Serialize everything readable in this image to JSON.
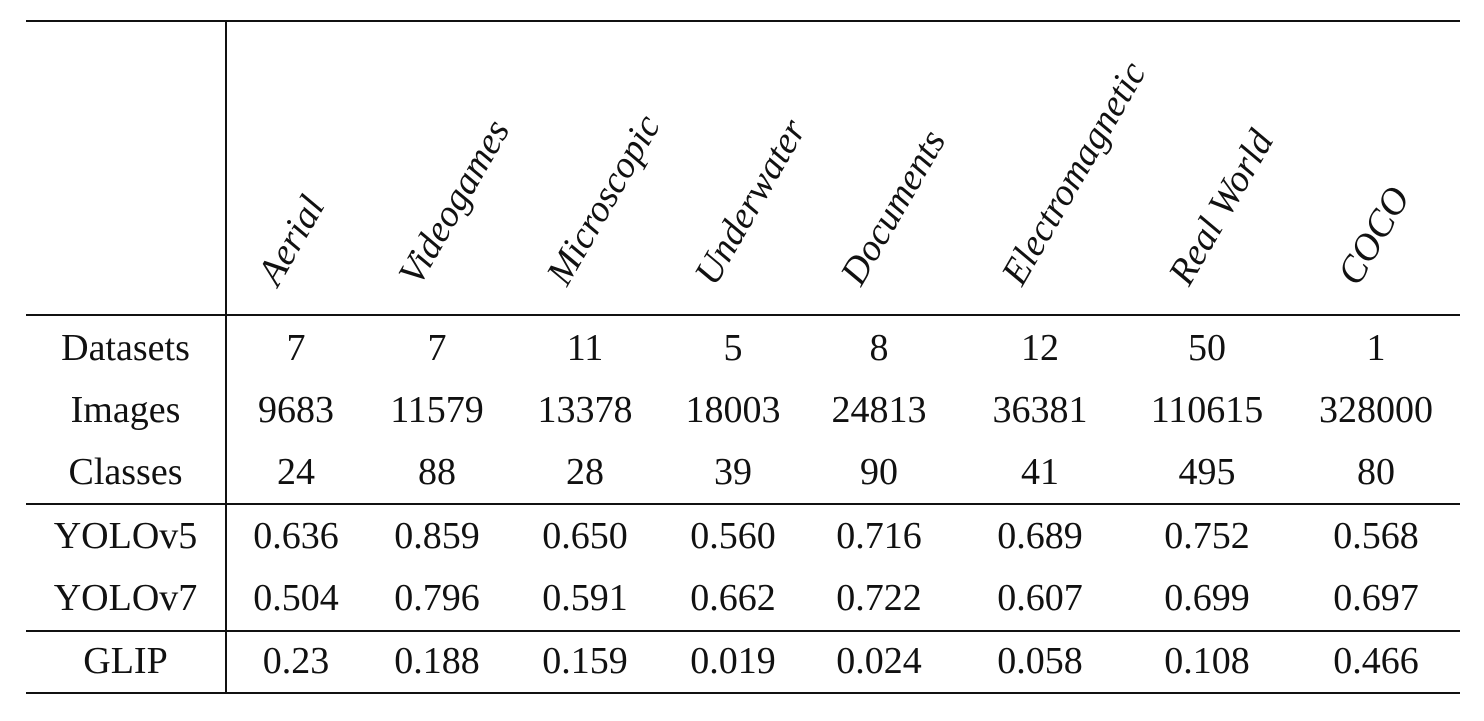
{
  "table": {
    "columns": [
      "Aerial",
      "Videogames",
      "Microscopic",
      "Underwater",
      "Documents",
      "Electromagnetic",
      "Real World",
      "COCO"
    ],
    "rows": [
      {
        "label": "Datasets",
        "values": [
          "7",
          "7",
          "11",
          "5",
          "8",
          "12",
          "50",
          "1"
        ]
      },
      {
        "label": "Images",
        "values": [
          "9683",
          "11579",
          "13378",
          "18003",
          "24813",
          "36381",
          "110615",
          "328000"
        ]
      },
      {
        "label": "Classes",
        "values": [
          "24",
          "88",
          "28",
          "39",
          "90",
          "41",
          "495",
          "80"
        ]
      },
      {
        "label": "YOLOv5",
        "values": [
          "0.636",
          "0.859",
          "0.650",
          "0.560",
          "0.716",
          "0.689",
          "0.752",
          "0.568"
        ]
      },
      {
        "label": "YOLOv7",
        "values": [
          "0.504",
          "0.796",
          "0.591",
          "0.662",
          "0.722",
          "0.607",
          "0.699",
          "0.697"
        ]
      },
      {
        "label": "GLIP",
        "values": [
          "0.23",
          "0.188",
          "0.159",
          "0.019",
          "0.024",
          "0.058",
          "0.108",
          "0.466"
        ]
      }
    ]
  }
}
